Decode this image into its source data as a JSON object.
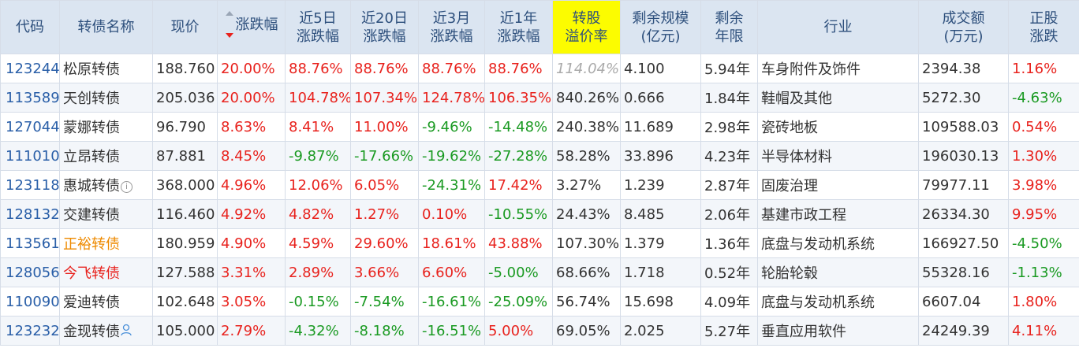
{
  "colors": {
    "header_bg": "#dbe5f1",
    "header_text": "#2d4f7c",
    "highlight": "#fcfc00",
    "up": "#e8221d",
    "down": "#1a9a22",
    "code": "#2a5fa8",
    "orange_name": "#ee8a00"
  },
  "headers": {
    "code": "代码",
    "name": "转债名称",
    "price": "现价",
    "change": "涨跌幅",
    "d5_1": "近5日",
    "d5_2": "涨跌幅",
    "d20_1": "近20日",
    "d20_2": "涨跌幅",
    "m3_1": "近3月",
    "m3_2": "涨跌幅",
    "y1_1": "近1年",
    "y1_2": "涨跌幅",
    "prem_1": "转股",
    "prem_2": "溢价率",
    "scale_1": "剩余规模",
    "scale_2": "(亿元)",
    "term_1": "剩余",
    "term_2": "年限",
    "industry": "行业",
    "vol_1": "成交额",
    "vol_2": "(万元)",
    "stock_1": "正股",
    "stock_2": "涨跌"
  },
  "sort": {
    "column": "涨跌幅",
    "direction": "desc",
    "icon": "sort-arrows-icon"
  },
  "rows": [
    {
      "code": "123244",
      "name": "松原转债",
      "name_style": "normal",
      "icon": null,
      "price": "188.760",
      "change": "20.00%",
      "d5": "88.76%",
      "d20": "88.76%",
      "m3": "88.76%",
      "y1": "88.76%",
      "premium": "114.04%",
      "scale": "4.100",
      "term": "5.94年",
      "industry": "车身附件及饰件",
      "volume": "2394.38",
      "stock_change": "1.16%"
    },
    {
      "code": "113589",
      "name": "天创转债",
      "name_style": "normal",
      "icon": null,
      "price": "205.036",
      "change": "20.00%",
      "d5": "104.78%",
      "d20": "107.34%",
      "m3": "124.78%",
      "y1": "106.35%",
      "premium": "840.26%",
      "scale": "0.666",
      "term": "1.84年",
      "industry": "鞋帽及其他",
      "volume": "5272.30",
      "stock_change": "-4.63%"
    },
    {
      "code": "127044",
      "name": "蒙娜转债",
      "name_style": "normal",
      "icon": null,
      "price": "96.790",
      "change": "8.63%",
      "d5": "8.41%",
      "d20": "11.00%",
      "m3": "-9.46%",
      "y1": "-14.48%",
      "premium": "240.38%",
      "scale": "11.689",
      "term": "2.98年",
      "industry": "瓷砖地板",
      "volume": "109588.03",
      "stock_change": "0.54%"
    },
    {
      "code": "111010",
      "name": "立昂转债",
      "name_style": "normal",
      "icon": null,
      "price": "87.881",
      "change": "8.45%",
      "d5": "-9.87%",
      "d20": "-17.66%",
      "m3": "-19.62%",
      "y1": "-27.28%",
      "premium": "58.28%",
      "scale": "33.896",
      "term": "4.23年",
      "industry": "半导体材料",
      "volume": "196030.13",
      "stock_change": "1.30%"
    },
    {
      "code": "123118",
      "name": "惠城转债",
      "name_style": "normal",
      "icon": "info-icon",
      "price": "368.000",
      "change": "4.96%",
      "d5": "12.06%",
      "d20": "6.05%",
      "m3": "-24.31%",
      "y1": "17.42%",
      "premium": "3.27%",
      "scale": "1.239",
      "term": "2.87年",
      "industry": "固废治理",
      "volume": "79977.11",
      "stock_change": "3.98%"
    },
    {
      "code": "128132",
      "name": "交建转债",
      "name_style": "normal",
      "icon": null,
      "price": "116.460",
      "change": "4.92%",
      "d5": "4.82%",
      "d20": "1.27%",
      "m3": "0.10%",
      "y1": "-10.55%",
      "premium": "24.43%",
      "scale": "8.485",
      "term": "2.06年",
      "industry": "基建市政工程",
      "volume": "26334.30",
      "stock_change": "9.95%"
    },
    {
      "code": "113561",
      "name": "正裕转债",
      "name_style": "orange",
      "icon": null,
      "price": "180.959",
      "change": "4.90%",
      "d5": "4.59%",
      "d20": "29.60%",
      "m3": "18.61%",
      "y1": "43.88%",
      "premium": "107.30%",
      "scale": "1.379",
      "term": "1.36年",
      "industry": "底盘与发动机系统",
      "volume": "166927.50",
      "stock_change": "-4.50%"
    },
    {
      "code": "128056",
      "name": "今飞转债",
      "name_style": "red",
      "icon": null,
      "price": "127.588",
      "change": "3.31%",
      "d5": "2.89%",
      "d20": "3.66%",
      "m3": "6.60%",
      "y1": "-5.00%",
      "premium": "68.66%",
      "scale": "1.718",
      "term": "0.52年",
      "industry": "轮胎轮毂",
      "volume": "55328.16",
      "stock_change": "-1.13%"
    },
    {
      "code": "110090",
      "name": "爱迪转债",
      "name_style": "normal",
      "icon": null,
      "price": "102.648",
      "change": "3.05%",
      "d5": "-0.15%",
      "d20": "-7.54%",
      "m3": "-16.61%",
      "y1": "-25.09%",
      "premium": "56.74%",
      "scale": "15.698",
      "term": "4.09年",
      "industry": "底盘与发动机系统",
      "volume": "6607.04",
      "stock_change": "1.80%"
    },
    {
      "code": "123232",
      "name": "金现转债",
      "name_style": "normal",
      "icon": "person-icon",
      "price": "105.000",
      "change": "2.79%",
      "d5": "-4.32%",
      "d20": "-8.18%",
      "m3": "-16.51%",
      "y1": "5.00%",
      "premium": "69.05%",
      "scale": "2.025",
      "term": "5.27年",
      "industry": "垂直应用软件",
      "volume": "24249.39",
      "stock_change": "4.11%"
    }
  ]
}
